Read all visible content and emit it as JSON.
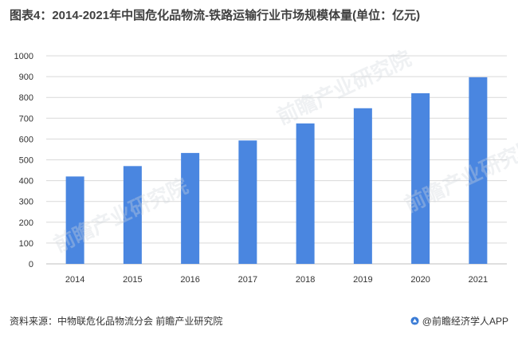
{
  "title": "图表4：2014-2021年中国危化品物流-铁路运输行业市场规模体量(单位：亿元)",
  "source": "资料来源：中物联危化品物流分会 前瞻产业研究院",
  "brand": "@前瞻经济学人APP",
  "watermark": "前瞻产业研究院",
  "colors": {
    "bar": "#4a86e0",
    "grid": "#d9d9d9",
    "axis": "#bfbfbf"
  },
  "chart_data": {
    "type": "bar",
    "title": "图表4：2014-2021年中国危化品物流-铁路运输行业市场规模体量(单位：亿元)",
    "xlabel": "",
    "ylabel": "",
    "categories": [
      "2014",
      "2015",
      "2016",
      "2017",
      "2018",
      "2019",
      "2020",
      "2021"
    ],
    "values": [
      420,
      470,
      533,
      593,
      675,
      748,
      820,
      897
    ],
    "ylim": [
      0,
      1000
    ],
    "yticks": [
      0,
      100,
      200,
      300,
      400,
      500,
      600,
      700,
      800,
      900,
      1000
    ],
    "grid": true,
    "legend": "none"
  }
}
